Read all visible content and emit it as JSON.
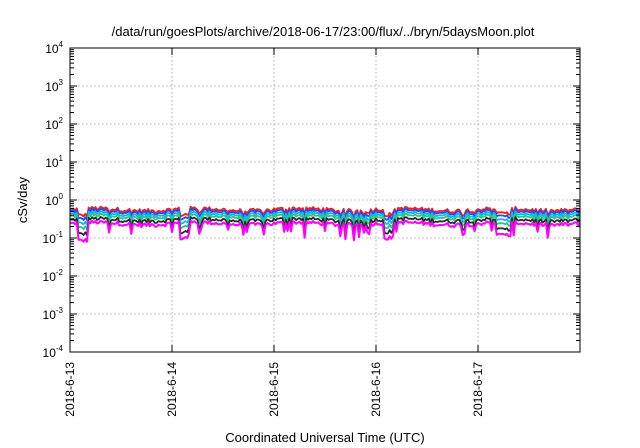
{
  "chart_data": {
    "type": "line",
    "title": "/data/run/goesPlots/archive/2018-06-17/23:00/flux/../bryn/5daysMoon.plot",
    "xlabel": "Coordinated Universal Time (UTC)",
    "ylabel": "cSv/day",
    "yscale": "log",
    "ylim": [
      0.0001,
      10000
    ],
    "xlim": [
      "2018-06-13",
      "2018-06-18"
    ],
    "grid": true,
    "y_ticks": [
      {
        "base": "10",
        "exp": "4"
      },
      {
        "base": "10",
        "exp": "3"
      },
      {
        "base": "10",
        "exp": "2"
      },
      {
        "base": "10",
        "exp": "1"
      },
      {
        "base": "10",
        "exp": "0"
      },
      {
        "base": "10",
        "exp": "-1"
      },
      {
        "base": "10",
        "exp": "-2"
      },
      {
        "base": "10",
        "exp": "-3"
      },
      {
        "base": "10",
        "exp": "-4"
      }
    ],
    "x_ticks": [
      "2018-6-13",
      "2018-6-14",
      "2018-6-15",
      "2018-6-16",
      "2018-6-17"
    ],
    "series": [
      {
        "color": "#ff1a1a",
        "level": 0.56
      },
      {
        "color": "#1a4dff",
        "level": 0.5
      },
      {
        "color": "#1ab3e6",
        "level": 0.43
      },
      {
        "color": "#22c98a",
        "level": 0.37
      },
      {
        "color": "#2a2a2a",
        "level": 0.3
      },
      {
        "color": "#ff00ff",
        "level": 0.24
      }
    ]
  }
}
